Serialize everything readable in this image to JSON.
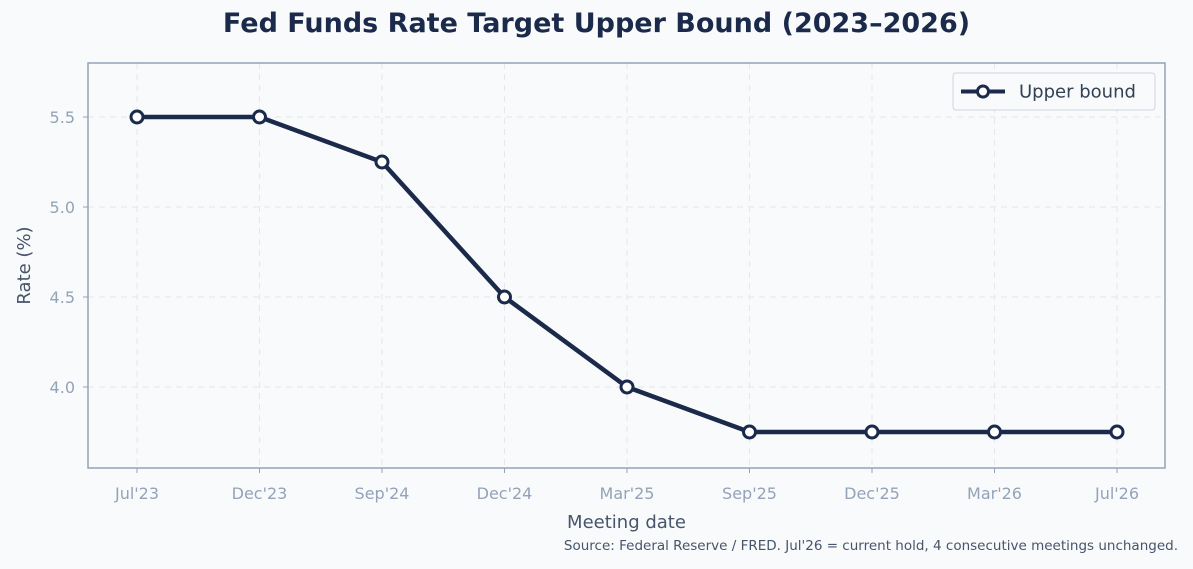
{
  "chart_data": {
    "type": "line",
    "title": "Fed Funds Rate Target Upper Bound (2023–2026)",
    "xlabel": "Meeting date",
    "ylabel": "Rate (%)",
    "categories": [
      "Jul'23",
      "Dec'23",
      "Sep'24",
      "Dec'24",
      "Mar'25",
      "Sep'25",
      "Dec'25",
      "Mar'26",
      "Jul'26"
    ],
    "series": [
      {
        "name": "Upper bound",
        "values": [
          5.5,
          5.5,
          5.25,
          4.5,
          4.0,
          3.75,
          3.75,
          3.75,
          3.75
        ]
      }
    ],
    "ylim": [
      3.55,
      5.8
    ],
    "yticks": [
      "4.0",
      "4.5",
      "5.0",
      "5.5"
    ],
    "grid": true,
    "legend_position": "top-right",
    "line_color": "#1b2a4a",
    "source_note": "Source: Federal Reserve / FRED. Jul'26 = current hold, 4 consecutive meetings unchanged."
  }
}
